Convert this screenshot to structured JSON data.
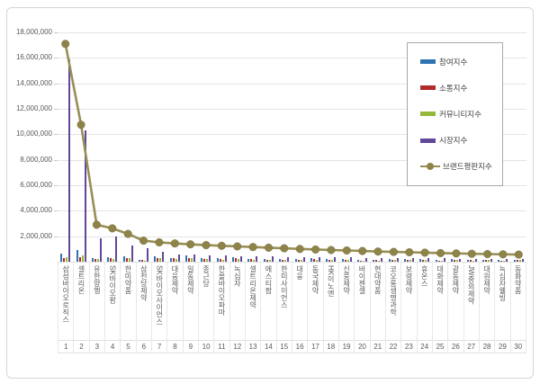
{
  "chart_data": {
    "type": "bar",
    "subtype": "grouped-bars-with-line-overlay",
    "title": "",
    "xlabel": "",
    "ylabel": "",
    "ylim": [
      0,
      18000000
    ],
    "ytick_step": 2000000,
    "grid": true,
    "legend_position": "top-right",
    "categories": [
      "삼성바이오로직스",
      "셀트리온",
      "유한양행",
      "SK바이오팜",
      "한미약품",
      "삼천당제약",
      "SK바이오사이언스",
      "대웅제약",
      "일동제약",
      "종근당",
      "한올바이오파마",
      "녹십자",
      "셀트리온제약",
      "에스티팜",
      "한미사이언스",
      "대웅",
      "동국제약",
      "HK이노엔",
      "신풍제약",
      "바이젠셀",
      "현대약품",
      "코오롱생명과학",
      "보령제약",
      "휴온스",
      "대화제약",
      "광동제약",
      "JW중외제약",
      "대원제약",
      "녹십자웰빙",
      "동화약품"
    ],
    "rank_labels": [
      "1",
      "2",
      "3",
      "4",
      "5",
      "6",
      "7",
      "8",
      "9",
      "10",
      "11",
      "12",
      "13",
      "14",
      "15",
      "16",
      "17",
      "18",
      "19",
      "20",
      "21",
      "22",
      "23",
      "24",
      "25",
      "26",
      "27",
      "28",
      "29",
      "30"
    ],
    "series": [
      {
        "name": "참여지수",
        "type": "bar",
        "color": "#2E74B5",
        "values": [
          620000,
          900000,
          300000,
          350000,
          400000,
          150000,
          420000,
          300000,
          480000,
          280000,
          250000,
          320000,
          240000,
          200000,
          230000,
          180000,
          260000,
          200000,
          230000,
          140000,
          160000,
          180000,
          200000,
          180000,
          120000,
          200000,
          150000,
          160000,
          130000,
          170000
        ]
      },
      {
        "name": "소통지수",
        "type": "bar",
        "color": "#B02B2C",
        "values": [
          280000,
          330000,
          230000,
          250000,
          300000,
          120000,
          280000,
          250000,
          300000,
          240000,
          180000,
          250000,
          180000,
          150000,
          170000,
          130000,
          200000,
          160000,
          170000,
          100000,
          120000,
          130000,
          150000,
          140000,
          90000,
          160000,
          120000,
          130000,
          100000,
          140000
        ]
      },
      {
        "name": "커뮤니티지수",
        "type": "bar",
        "color": "#94B73C",
        "values": [
          350000,
          470000,
          180000,
          200000,
          250000,
          100000,
          250000,
          200000,
          280000,
          200000,
          150000,
          220000,
          150000,
          130000,
          150000,
          110000,
          170000,
          140000,
          150000,
          90000,
          100000,
          110000,
          130000,
          120000,
          80000,
          140000,
          100000,
          110000,
          90000,
          120000
        ]
      },
      {
        "name": "시장지수",
        "type": "bar",
        "color": "#63489A",
        "values": [
          15850000,
          10300000,
          1840000,
          2000000,
          1250000,
          1050000,
          780000,
          600000,
          550000,
          500000,
          480000,
          450000,
          420000,
          400000,
          380000,
          360000,
          340000,
          330000,
          320000,
          300000,
          290000,
          280000,
          270000,
          260000,
          250000,
          240000,
          230000,
          220000,
          210000,
          200000
        ]
      },
      {
        "name": "브랜드평판지수",
        "type": "line",
        "color": "#978F55",
        "marker_color": "#8E8449",
        "values": [
          17100000,
          10750000,
          2900000,
          2620000,
          2180000,
          1650000,
          1520000,
          1430000,
          1360000,
          1300000,
          1250000,
          1200000,
          1150000,
          1100000,
          1050000,
          1000000,
          960000,
          920000,
          880000,
          840000,
          800000,
          770000,
          740000,
          710000,
          680000,
          650000,
          620000,
          600000,
          580000,
          560000
        ]
      }
    ]
  }
}
